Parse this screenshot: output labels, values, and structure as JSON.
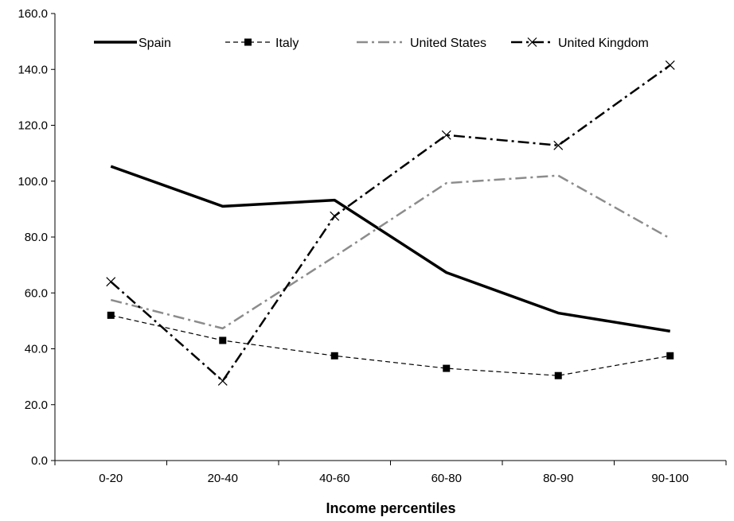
{
  "chart_data": {
    "type": "line",
    "title": "",
    "xlabel": "Income percentiles",
    "ylabel": "",
    "categories": [
      "0-20",
      "20-40",
      "40-60",
      "60-80",
      "80-90",
      "90-100"
    ],
    "ylim": [
      0,
      160
    ],
    "yticks": [
      "0.0",
      "20.0",
      "40.0",
      "60.0",
      "80.0",
      "100.0",
      "120.0",
      "140.0",
      "160.0"
    ],
    "grid": false,
    "legend_position": "top",
    "series": [
      {
        "name": "Spain",
        "values": [
          105.3,
          91.0,
          93.2,
          67.3,
          52.8,
          46.3
        ],
        "color": "#000000",
        "style": "solid",
        "marker": "none"
      },
      {
        "name": "Italy",
        "values": [
          52.0,
          43.0,
          37.5,
          33.0,
          30.4,
          37.5
        ],
        "color": "#000000",
        "style": "dashed",
        "marker": "square"
      },
      {
        "name": "United States",
        "values": [
          57.5,
          47.3,
          73.0,
          99.3,
          102.0,
          79.5
        ],
        "color": "#8c8c8c",
        "style": "dashdot",
        "marker": "none"
      },
      {
        "name": "United Kingdom",
        "values": [
          64.0,
          28.5,
          87.5,
          116.5,
          112.8,
          141.5
        ],
        "color": "#000000",
        "style": "dashdot",
        "marker": "x"
      }
    ]
  }
}
